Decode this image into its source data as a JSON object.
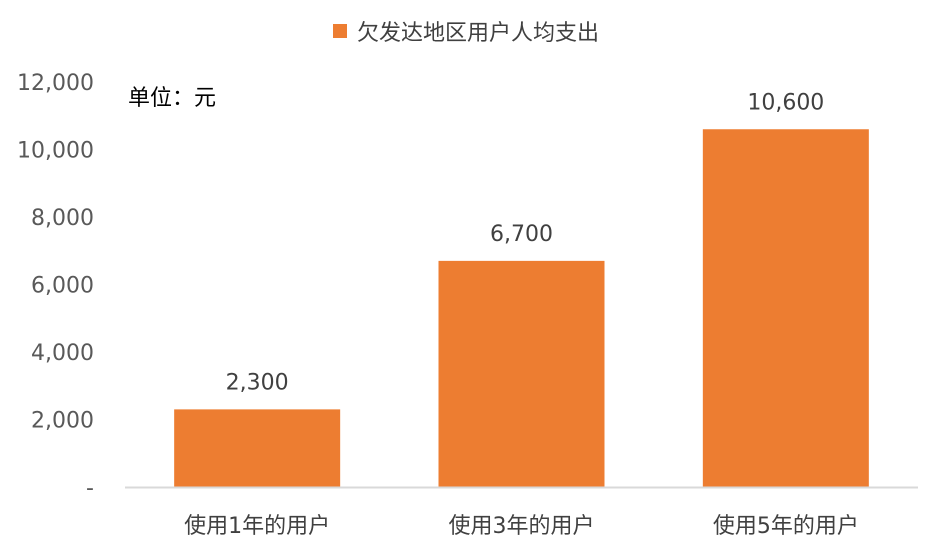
{
  "chart_data": {
    "type": "bar",
    "categories": [
      "使用1年的用户",
      "使用3年的用户",
      "使用5年的用户"
    ],
    "series": [
      {
        "name": "欠发达地区用户人均支出",
        "values": [
          2300,
          6700,
          10600
        ],
        "data_labels": [
          "2,300",
          "6,700",
          "10,600"
        ]
      }
    ],
    "unit_note": "单位：元",
    "ylim": [
      0,
      12000
    ],
    "yticks": [
      0,
      2000,
      4000,
      6000,
      8000,
      10000,
      12000
    ],
    "ytick_labels": [
      "-",
      "2,000",
      "4,000",
      "6,000",
      "8,000",
      "10,000",
      "12,000"
    ],
    "legend_position": "top-center",
    "grid": false,
    "bar_color": "#ED7D31",
    "axis_color": "#D9D9D9"
  }
}
